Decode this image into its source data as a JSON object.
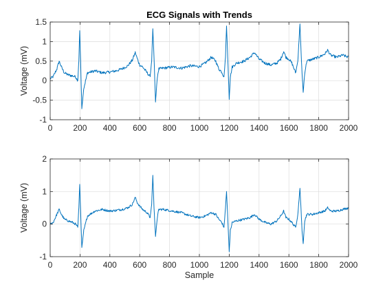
{
  "figure": {
    "title": "ECG Signals with Trends",
    "background": "#ffffff",
    "axes_color": "#262626",
    "grid_color": "#dcdcdc"
  },
  "chart_data": [
    {
      "type": "line",
      "title": "ECG Signals with Trends",
      "xlabel": "",
      "ylabel": "Voltage (mV)",
      "xlim": [
        0,
        2000
      ],
      "ylim": [
        -1,
        1.5
      ],
      "xticks": [
        0,
        200,
        400,
        600,
        800,
        1000,
        1200,
        1400,
        1600,
        1800,
        2000
      ],
      "yticks": [
        -1,
        -0.5,
        0,
        0.5,
        1,
        1.5
      ],
      "ytick_labels": [
        "-1",
        "-0.5",
        "0",
        "0.5",
        "1",
        "1.5"
      ],
      "grid": true,
      "series": [
        {
          "color": "#0072BD",
          "x": [
            0,
            20,
            45,
            60,
            75,
            95,
            120,
            150,
            170,
            185,
            192,
            198,
            204,
            212,
            225,
            250,
            300,
            350,
            400,
            440,
            480,
            520,
            550,
            570,
            585,
            600,
            620,
            650,
            670,
            680,
            688,
            696,
            706,
            718,
            728,
            760,
            820,
            880,
            940,
            1000,
            1040,
            1080,
            1110,
            1130,
            1150,
            1165,
            1175,
            1182,
            1190,
            1200,
            1208,
            1220,
            1250,
            1300,
            1340,
            1370,
            1400,
            1440,
            1480,
            1520,
            1545,
            1565,
            1580,
            1600,
            1620,
            1645,
            1660,
            1674,
            1682,
            1688,
            1696,
            1706,
            1720,
            1760,
            1800,
            1840,
            1860,
            1880,
            1920,
            1960,
            2000
          ],
          "y": [
            0.05,
            0.1,
            0.3,
            0.5,
            0.35,
            0.2,
            0.15,
            0.12,
            0.1,
            0.0,
            0.5,
            1.28,
            0.5,
            -0.72,
            -0.2,
            0.2,
            0.25,
            0.2,
            0.22,
            0.25,
            0.3,
            0.38,
            0.52,
            0.72,
            0.55,
            0.4,
            0.35,
            0.2,
            0.1,
            0.5,
            1.33,
            0.6,
            -0.55,
            0.1,
            0.3,
            0.32,
            0.35,
            0.32,
            0.38,
            0.36,
            0.45,
            0.6,
            0.5,
            0.3,
            0.22,
            0.1,
            0.6,
            1.4,
            0.6,
            -0.48,
            0.1,
            0.35,
            0.45,
            0.5,
            0.6,
            0.72,
            0.55,
            0.45,
            0.4,
            0.45,
            0.55,
            0.75,
            0.6,
            0.55,
            0.45,
            0.2,
            0.5,
            1.45,
            0.7,
            0.2,
            -0.3,
            0.2,
            0.5,
            0.55,
            0.6,
            0.68,
            0.78,
            0.65,
            0.6,
            0.65,
            0.6
          ]
        }
      ]
    },
    {
      "type": "line",
      "title": "",
      "xlabel": "Sample",
      "ylabel": "Voltage (mV)",
      "xlim": [
        0,
        2000
      ],
      "ylim": [
        -1,
        2
      ],
      "xticks": [
        0,
        200,
        400,
        600,
        800,
        1000,
        1200,
        1400,
        1600,
        1800,
        2000
      ],
      "yticks": [
        -1,
        0,
        1,
        2
      ],
      "ytick_labels": [
        "-1",
        "0",
        "1",
        "2"
      ],
      "grid": true,
      "series": [
        {
          "color": "#0072BD",
          "x": [
            0,
            20,
            45,
            60,
            75,
            95,
            120,
            150,
            170,
            185,
            192,
            198,
            204,
            212,
            225,
            250,
            300,
            350,
            400,
            440,
            480,
            520,
            550,
            570,
            585,
            600,
            620,
            650,
            670,
            680,
            688,
            696,
            706,
            718,
            728,
            760,
            820,
            880,
            940,
            1000,
            1040,
            1080,
            1110,
            1130,
            1150,
            1165,
            1175,
            1182,
            1190,
            1200,
            1208,
            1220,
            1250,
            1300,
            1340,
            1370,
            1400,
            1440,
            1480,
            1520,
            1545,
            1565,
            1580,
            1600,
            1620,
            1645,
            1660,
            1674,
            1682,
            1688,
            1696,
            1706,
            1720,
            1760,
            1800,
            1840,
            1860,
            1880,
            1920,
            1960,
            2000
          ],
          "y": [
            0.0,
            0.05,
            0.3,
            0.45,
            0.3,
            0.15,
            0.1,
            0.05,
            0.0,
            -0.1,
            0.5,
            1.22,
            0.4,
            -0.72,
            -0.2,
            0.25,
            0.4,
            0.45,
            0.4,
            0.42,
            0.45,
            0.5,
            0.6,
            0.82,
            0.65,
            0.55,
            0.45,
            0.35,
            0.2,
            0.6,
            1.5,
            0.5,
            -0.38,
            0.2,
            0.45,
            0.45,
            0.4,
            0.35,
            0.25,
            0.2,
            0.25,
            0.35,
            0.3,
            0.15,
            0.05,
            -0.1,
            0.5,
            1.0,
            0.2,
            -0.85,
            -0.2,
            0.05,
            0.1,
            0.15,
            0.2,
            0.3,
            0.15,
            0.05,
            0.0,
            0.1,
            0.25,
            0.4,
            0.2,
            0.15,
            0.05,
            -0.1,
            0.3,
            1.1,
            0.4,
            -0.2,
            -0.6,
            0.1,
            0.3,
            0.3,
            0.35,
            0.4,
            0.5,
            0.4,
            0.4,
            0.45,
            0.5
          ]
        }
      ]
    }
  ]
}
